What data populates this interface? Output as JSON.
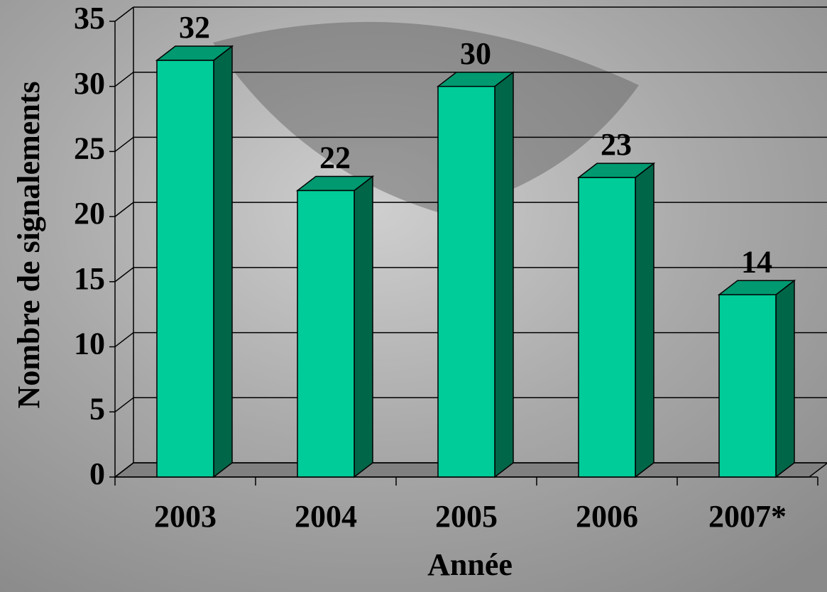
{
  "chart_data": {
    "type": "bar3d",
    "categories": [
      "2003",
      "2004",
      "2005",
      "2006",
      "2007*"
    ],
    "values": [
      32,
      22,
      30,
      23,
      14
    ],
    "color": "#00cc99",
    "side_color": "#006648",
    "top_color": "#009970",
    "floor_color": "#808080",
    "ylim": [
      0,
      35
    ],
    "yticks": [
      0,
      5,
      10,
      15,
      20,
      25,
      30,
      35
    ],
    "grid": true,
    "ylabel": "Nombre de signalements",
    "xlabel": "Année"
  }
}
